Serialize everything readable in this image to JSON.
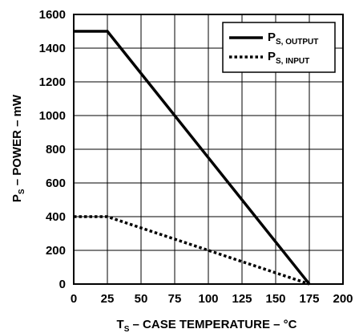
{
  "chart_data": {
    "type": "line",
    "xlabel": {
      "prefix": "T",
      "subscript": "S",
      "rest": " – CASE TEMPERATURE – °C"
    },
    "ylabel": {
      "prefix": "P",
      "subscript": "S",
      "rest": " – POWER – mW"
    },
    "xlim": [
      0,
      200
    ],
    "ylim": [
      0,
      1600
    ],
    "x_ticks": [
      0,
      25,
      50,
      75,
      100,
      125,
      150,
      175,
      200
    ],
    "y_ticks": [
      0,
      200,
      400,
      600,
      800,
      1000,
      1200,
      1400,
      1600
    ],
    "grid": true,
    "legend_position": "top-right",
    "series": [
      {
        "name": {
          "prefix": "P",
          "subscript": "S, OUTPUT"
        },
        "style": "solid",
        "color": "#000000",
        "x": [
          0,
          25,
          175
        ],
        "y": [
          1500,
          1500,
          0
        ]
      },
      {
        "name": {
          "prefix": "P",
          "subscript": "S, INPUT"
        },
        "style": "dotted",
        "color": "#000000",
        "x": [
          0,
          25,
          175
        ],
        "y": [
          400,
          400,
          0
        ]
      }
    ]
  }
}
